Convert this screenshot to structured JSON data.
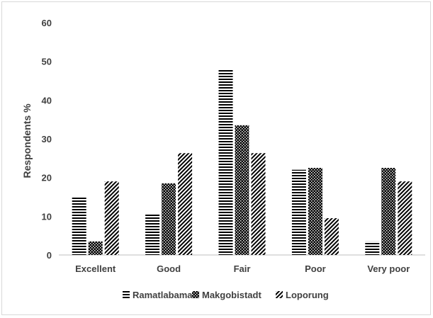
{
  "chart_data": {
    "type": "bar",
    "title": "",
    "xlabel": "",
    "ylabel": "Respondents %",
    "ylim": [
      0,
      60
    ],
    "yticks": [
      0,
      10,
      20,
      30,
      40,
      50,
      60
    ],
    "grid": false,
    "legend_position": "bottom",
    "categories": [
      "Excellent",
      "Good",
      "Fair",
      "Poor",
      "Very poor"
    ],
    "series": [
      {
        "name": "Ramatlabama",
        "pattern": "horizontal-lines",
        "values": [
          15,
          10.5,
          48,
          22,
          3.5
        ]
      },
      {
        "name": "Makgobistadt",
        "pattern": "checkered",
        "values": [
          3.5,
          18.5,
          33.5,
          22.5,
          22.5
        ]
      },
      {
        "name": "Loporung",
        "pattern": "diagonal-lines",
        "values": [
          19,
          26.3,
          26.3,
          9.5,
          19
        ]
      }
    ]
  }
}
